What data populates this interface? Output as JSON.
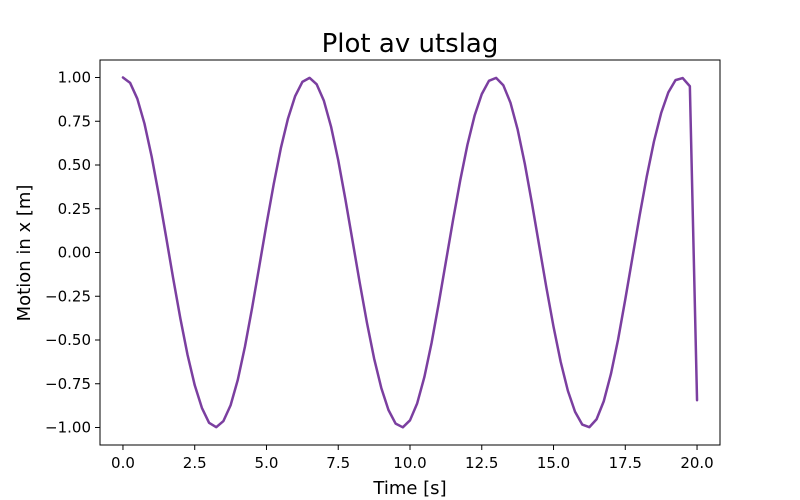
{
  "chart_data": {
    "type": "line",
    "title": "Plot av utslag",
    "xlabel": "Time [s]",
    "ylabel": "Motion in x [m]",
    "xlim": [
      -0.8,
      20.8
    ],
    "ylim": [
      -1.1,
      1.1
    ],
    "x_ticks": [
      0.0,
      2.5,
      5.0,
      7.5,
      10.0,
      12.5,
      15.0,
      17.5,
      20.0
    ],
    "x_tick_labels": [
      "0.0",
      "2.5",
      "5.0",
      "7.5",
      "10.0",
      "12.5",
      "15.0",
      "17.5",
      "20.0"
    ],
    "y_ticks": [
      1.0,
      0.75,
      0.5,
      0.25,
      0.0,
      -0.25,
      -0.5,
      -0.75,
      -1.0
    ],
    "y_tick_labels": [
      "1.00",
      "0.75",
      "0.50",
      "0.25",
      "0.00",
      "−0.25",
      "−0.50",
      "−0.75",
      "−1.00"
    ],
    "grid": false,
    "series": [
      {
        "color": "#7b3fa0",
        "x": [
          0,
          0.25,
          0.5,
          0.75,
          1,
          1.25,
          1.5,
          1.75,
          2,
          2.25,
          2.5,
          2.75,
          3,
          3.25,
          3.5,
          3.75,
          4,
          4.25,
          4.5,
          4.75,
          5,
          5.25,
          5.5,
          5.75,
          6,
          6.25,
          6.5,
          6.75,
          7,
          7.25,
          7.5,
          7.75,
          8,
          8.25,
          8.5,
          8.75,
          9,
          9.25,
          9.5,
          9.75,
          10,
          10.25,
          10.5,
          10.75,
          11,
          11.25,
          11.5,
          11.75,
          12,
          12.25,
          12.5,
          12.75,
          13,
          13.25,
          13.5,
          13.75,
          14,
          14.25,
          14.5,
          14.75,
          15,
          15.25,
          15.5,
          15.75,
          16,
          16.25,
          16.5,
          16.75,
          17,
          17.25,
          17.5,
          17.75,
          18,
          18.25,
          18.5,
          18.75,
          19,
          19.25,
          19.5,
          19.75,
          20
        ],
        "y": [
          1.0,
          0.969,
          0.879,
          0.736,
          0.548,
          0.328,
          0.092,
          -0.148,
          -0.377,
          -0.585,
          -0.758,
          -0.888,
          -0.973,
          -0.998,
          -0.963,
          -0.873,
          -0.728,
          -0.538,
          -0.316,
          -0.078,
          0.161,
          0.389,
          0.596,
          0.766,
          0.894,
          0.975,
          0.998,
          0.961,
          0.867,
          0.719,
          0.527,
          0.303,
          0.065,
          -0.174,
          -0.401,
          -0.606,
          -0.774,
          -0.9,
          -0.978,
          -0.999,
          -0.959,
          -0.862,
          -0.712,
          -0.518,
          -0.292,
          -0.053,
          0.186,
          0.412,
          0.615,
          0.782,
          0.905,
          0.981,
          0.998,
          0.956,
          0.856,
          0.703,
          0.507,
          0.28,
          0.04,
          -0.199,
          -0.424,
          -0.625,
          -0.79,
          -0.91,
          -0.983,
          -0.998,
          -0.953,
          -0.85,
          -0.694,
          -0.497,
          -0.268,
          -0.028,
          0.211,
          0.436,
          0.635,
          0.797,
          0.915,
          0.985,
          0.997,
          0.95,
          -0.844
        ]
      }
    ]
  }
}
